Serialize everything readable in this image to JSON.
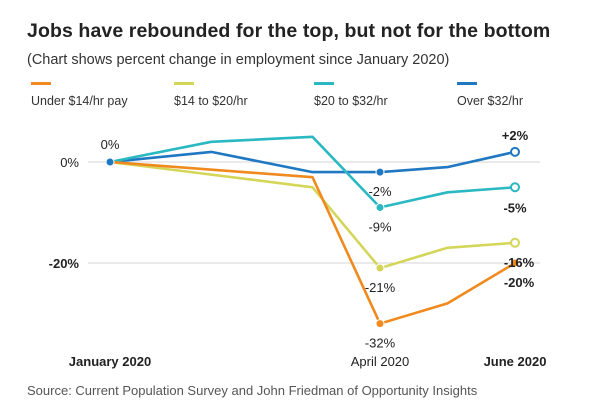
{
  "header": {
    "title": "Jobs have rebounded for the top, but not for the bottom",
    "subtitle": "(Chart shows percent change in employment since January 2020)"
  },
  "source": "Source: Current Population Survey and John Friedman of Opportunity Insights",
  "chart_data": {
    "type": "line",
    "title": "Jobs have rebounded for the top, but not for the bottom",
    "subtitle": "(Chart shows percent change in employment since January 2020)",
    "xlabel": "",
    "ylabel": "",
    "x_tick_labels": [
      "January 2020",
      "April 2020",
      "June 2020"
    ],
    "y_tick_labels": [
      "0%",
      "-20%"
    ],
    "y_ticks": [
      0,
      -20
    ],
    "ylim": [
      -36,
      6
    ],
    "grid": true,
    "legend_position": "top",
    "series": [
      {
        "name": "Under $14/hr pay",
        "color": "#f08a1e",
        "points": [
          [
            0,
            0
          ],
          [
            1.5,
            -3
          ],
          [
            2,
            -32
          ],
          [
            2.5,
            -28
          ],
          [
            3,
            -20
          ]
        ],
        "open_end": false,
        "labels": [
          {
            "index": 2,
            "text": "-32%",
            "pos": "below"
          },
          {
            "index": 4,
            "text": "-20%",
            "pos": "endlow"
          }
        ]
      },
      {
        "name": "$14 to $20/hr",
        "color": "#d4d65a",
        "points": [
          [
            0,
            0
          ],
          [
            1.5,
            -5
          ],
          [
            2,
            -21
          ],
          [
            2.5,
            -17
          ],
          [
            3,
            -16
          ]
        ],
        "open_end": true,
        "labels": [
          {
            "index": 2,
            "text": "-21%",
            "pos": "below"
          },
          {
            "index": 4,
            "text": "-16%",
            "pos": "endmid"
          }
        ]
      },
      {
        "name": "$20 to $32/hr",
        "color": "#2ab8c2",
        "points": [
          [
            0,
            0
          ],
          [
            0.75,
            4
          ],
          [
            1.5,
            5
          ],
          [
            2,
            -9
          ],
          [
            2.5,
            -6
          ],
          [
            3,
            -5
          ]
        ],
        "open_end": true,
        "labels": [
          {
            "index": 3,
            "text": "-9%",
            "pos": "below"
          },
          {
            "index": 5,
            "text": "-5%",
            "pos": "endbelow"
          }
        ]
      },
      {
        "name": "Over $32/hr",
        "color": "#1f78c1",
        "points": [
          [
            0,
            0
          ],
          [
            0.75,
            2
          ],
          [
            1.5,
            -2
          ],
          [
            2,
            -2
          ],
          [
            2.5,
            -1
          ],
          [
            3,
            2
          ]
        ],
        "open_end": true,
        "labels": [
          {
            "index": 3,
            "text": "-2%",
            "pos": "below"
          },
          {
            "index": 5,
            "text": "+2%",
            "pos": "above"
          }
        ]
      }
    ],
    "start_label": "0%"
  },
  "colors": {
    "grid": "#d5d5d5",
    "axis_text": "#222222"
  }
}
